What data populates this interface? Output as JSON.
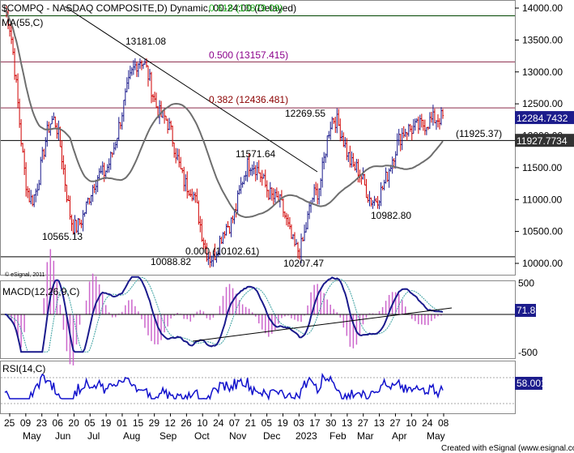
{
  "header": {
    "title": "$COMPQ - NASDAQ COMPOSITE,D) Dynamic, 00-24:00 (Delayed)",
    "overlay_fib": "0.618 (13879.09)",
    "ma_label": "MA(55,C)"
  },
  "copyright": "© eSignal, 2011",
  "footer": "Created with eSignal (www.esignal.com)",
  "colors": {
    "up": "#1a1a8c",
    "down": "#d00000",
    "ma": "#6e6e6e",
    "trend": "#000000",
    "fib_line": "#8b0000",
    "fib_label_0618": "#00aa00",
    "fib_label_0500": "#8b008b",
    "fib_label_0382": "#8b0000",
    "macd": "#1a1a8c",
    "signal": "#3aa0a0",
    "hist": "#cc66cc",
    "rsi": "#1010cc",
    "tag_bg": "#1c1c8c"
  },
  "chart_data": [
    {
      "type": "candlestick",
      "symbol": "$COMPQ",
      "ylim": [
        10000,
        14000
      ],
      "y_ticks": [
        "14000.00",
        "13500.00",
        "13000.00",
        "12500.00",
        "12000.00",
        "11500.00",
        "11000.00",
        "10500.00",
        "10000.00"
      ],
      "x_day_ticks": [
        "25",
        "09",
        "23",
        "06",
        "20",
        "05",
        "19",
        "01",
        "15",
        "29",
        "12",
        "26",
        "10",
        "24",
        "07",
        "21",
        "05",
        "19",
        "03",
        "17",
        "30",
        "13",
        "27",
        "13",
        "27",
        "10",
        "24",
        "08"
      ],
      "x_month_labels": [
        "May",
        "Jun",
        "Jul",
        "Aug",
        "Sep",
        "Oct",
        "Nov",
        "Dec",
        "2023",
        "Feb",
        "Mar",
        "Apr",
        "May"
      ],
      "price_points": [
        {
          "label": "start",
          "value": 13950
        },
        {
          "label": "May low",
          "value": 11000
        },
        {
          "label": "Jun rally",
          "value": 12250
        },
        {
          "label": "low",
          "value": 10565.13
        },
        {
          "label": "Jul mid",
          "value": 11400
        },
        {
          "label": "high",
          "value": 13181.08
        },
        {
          "label": "Sep",
          "value": 12300
        },
        {
          "label": "Sep low",
          "value": 11200
        },
        {
          "label": "low",
          "value": 10088.82
        },
        {
          "label": "Oct",
          "value": 10600
        },
        {
          "label": "Nov high",
          "value": 11571.64
        },
        {
          "label": "Dec",
          "value": 11000
        },
        {
          "label": "low",
          "value": 10207.47
        },
        {
          "label": "Jan",
          "value": 11100
        },
        {
          "label": "high",
          "value": 12269.55
        },
        {
          "label": "Feb",
          "value": 11500
        },
        {
          "label": "low",
          "value": 10982.8
        },
        {
          "label": "Apr",
          "value": 12100
        },
        {
          "label": "last",
          "value": 12284.7432
        }
      ],
      "annotations": [
        {
          "text": "13181.08",
          "value": 13181.08
        },
        {
          "text": "10565.13",
          "value": 10565.13
        },
        {
          "text": "10088.82",
          "value": 10088.82
        },
        {
          "text": "11571.64",
          "value": 11571.64
        },
        {
          "text": "10207.47",
          "value": 10207.47
        },
        {
          "text": "12269.55",
          "value": 12269.55
        },
        {
          "text": "10982.80",
          "value": 10982.8
        },
        {
          "text": "(11925.37)",
          "value": 11925.37
        }
      ],
      "fib_levels": [
        {
          "label": "0.618 (13879.09)",
          "value": 13879.09
        },
        {
          "label": "0.500 (13157.415)",
          "value": 13157.415
        },
        {
          "label": "0.382 (12436.481)",
          "value": 12436.481
        },
        {
          "label": "0.000 (10102.61)",
          "value": 10102.61
        }
      ],
      "horizontal_level": 11925.37,
      "last_price_tag": "12284.7432",
      "ma_tag": "11927.7734"
    },
    {
      "type": "line",
      "name": "MACD(12,26,9,C)",
      "y_ticks": [
        "500",
        "-500"
      ],
      "last_value_tag": "71.85"
    },
    {
      "type": "line",
      "name": "RSI(14,C)",
      "last_value_tag": "58.001"
    }
  ]
}
